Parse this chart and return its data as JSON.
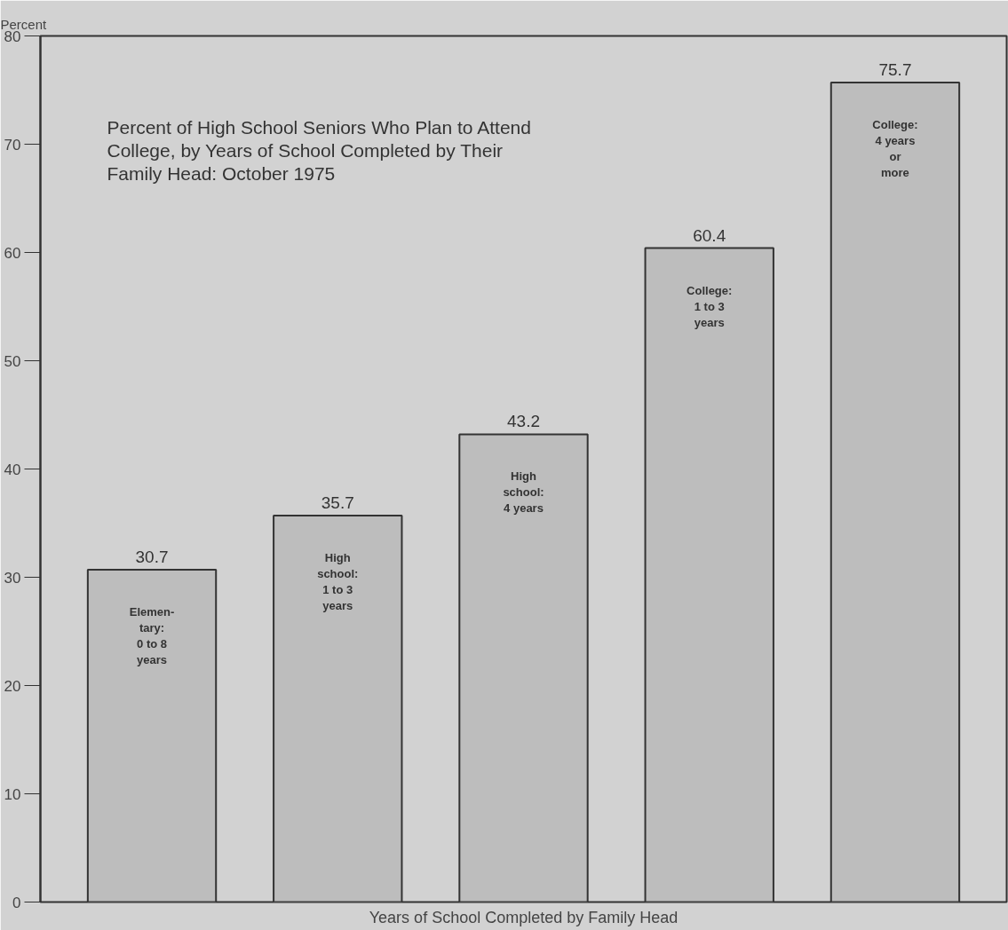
{
  "chart_data": {
    "type": "bar",
    "title": "Percent of High School Seniors Who Plan to Attend\nCollege, by Years of School Completed by Their\nFamily Head: October 1975",
    "xlabel": "Years of School Completed by Family Head",
    "ylabel": "Percent",
    "categories": [
      "Elemen-\ntary:\n0 to 8\nyears",
      "High\nschool:\n1 to 3\nyears",
      "High\nschool:\n4 years",
      "College:\n1 to 3\nyears",
      "College:\n4 years\nor\nmore"
    ],
    "values": [
      30.7,
      35.7,
      43.2,
      60.4,
      75.7
    ],
    "color": "#bdbdbd",
    "ylim": [
      0,
      80
    ],
    "yticks": [
      0,
      10,
      20,
      30,
      40,
      50,
      60,
      70,
      80
    ],
    "grid": false,
    "data_labels": true
  }
}
